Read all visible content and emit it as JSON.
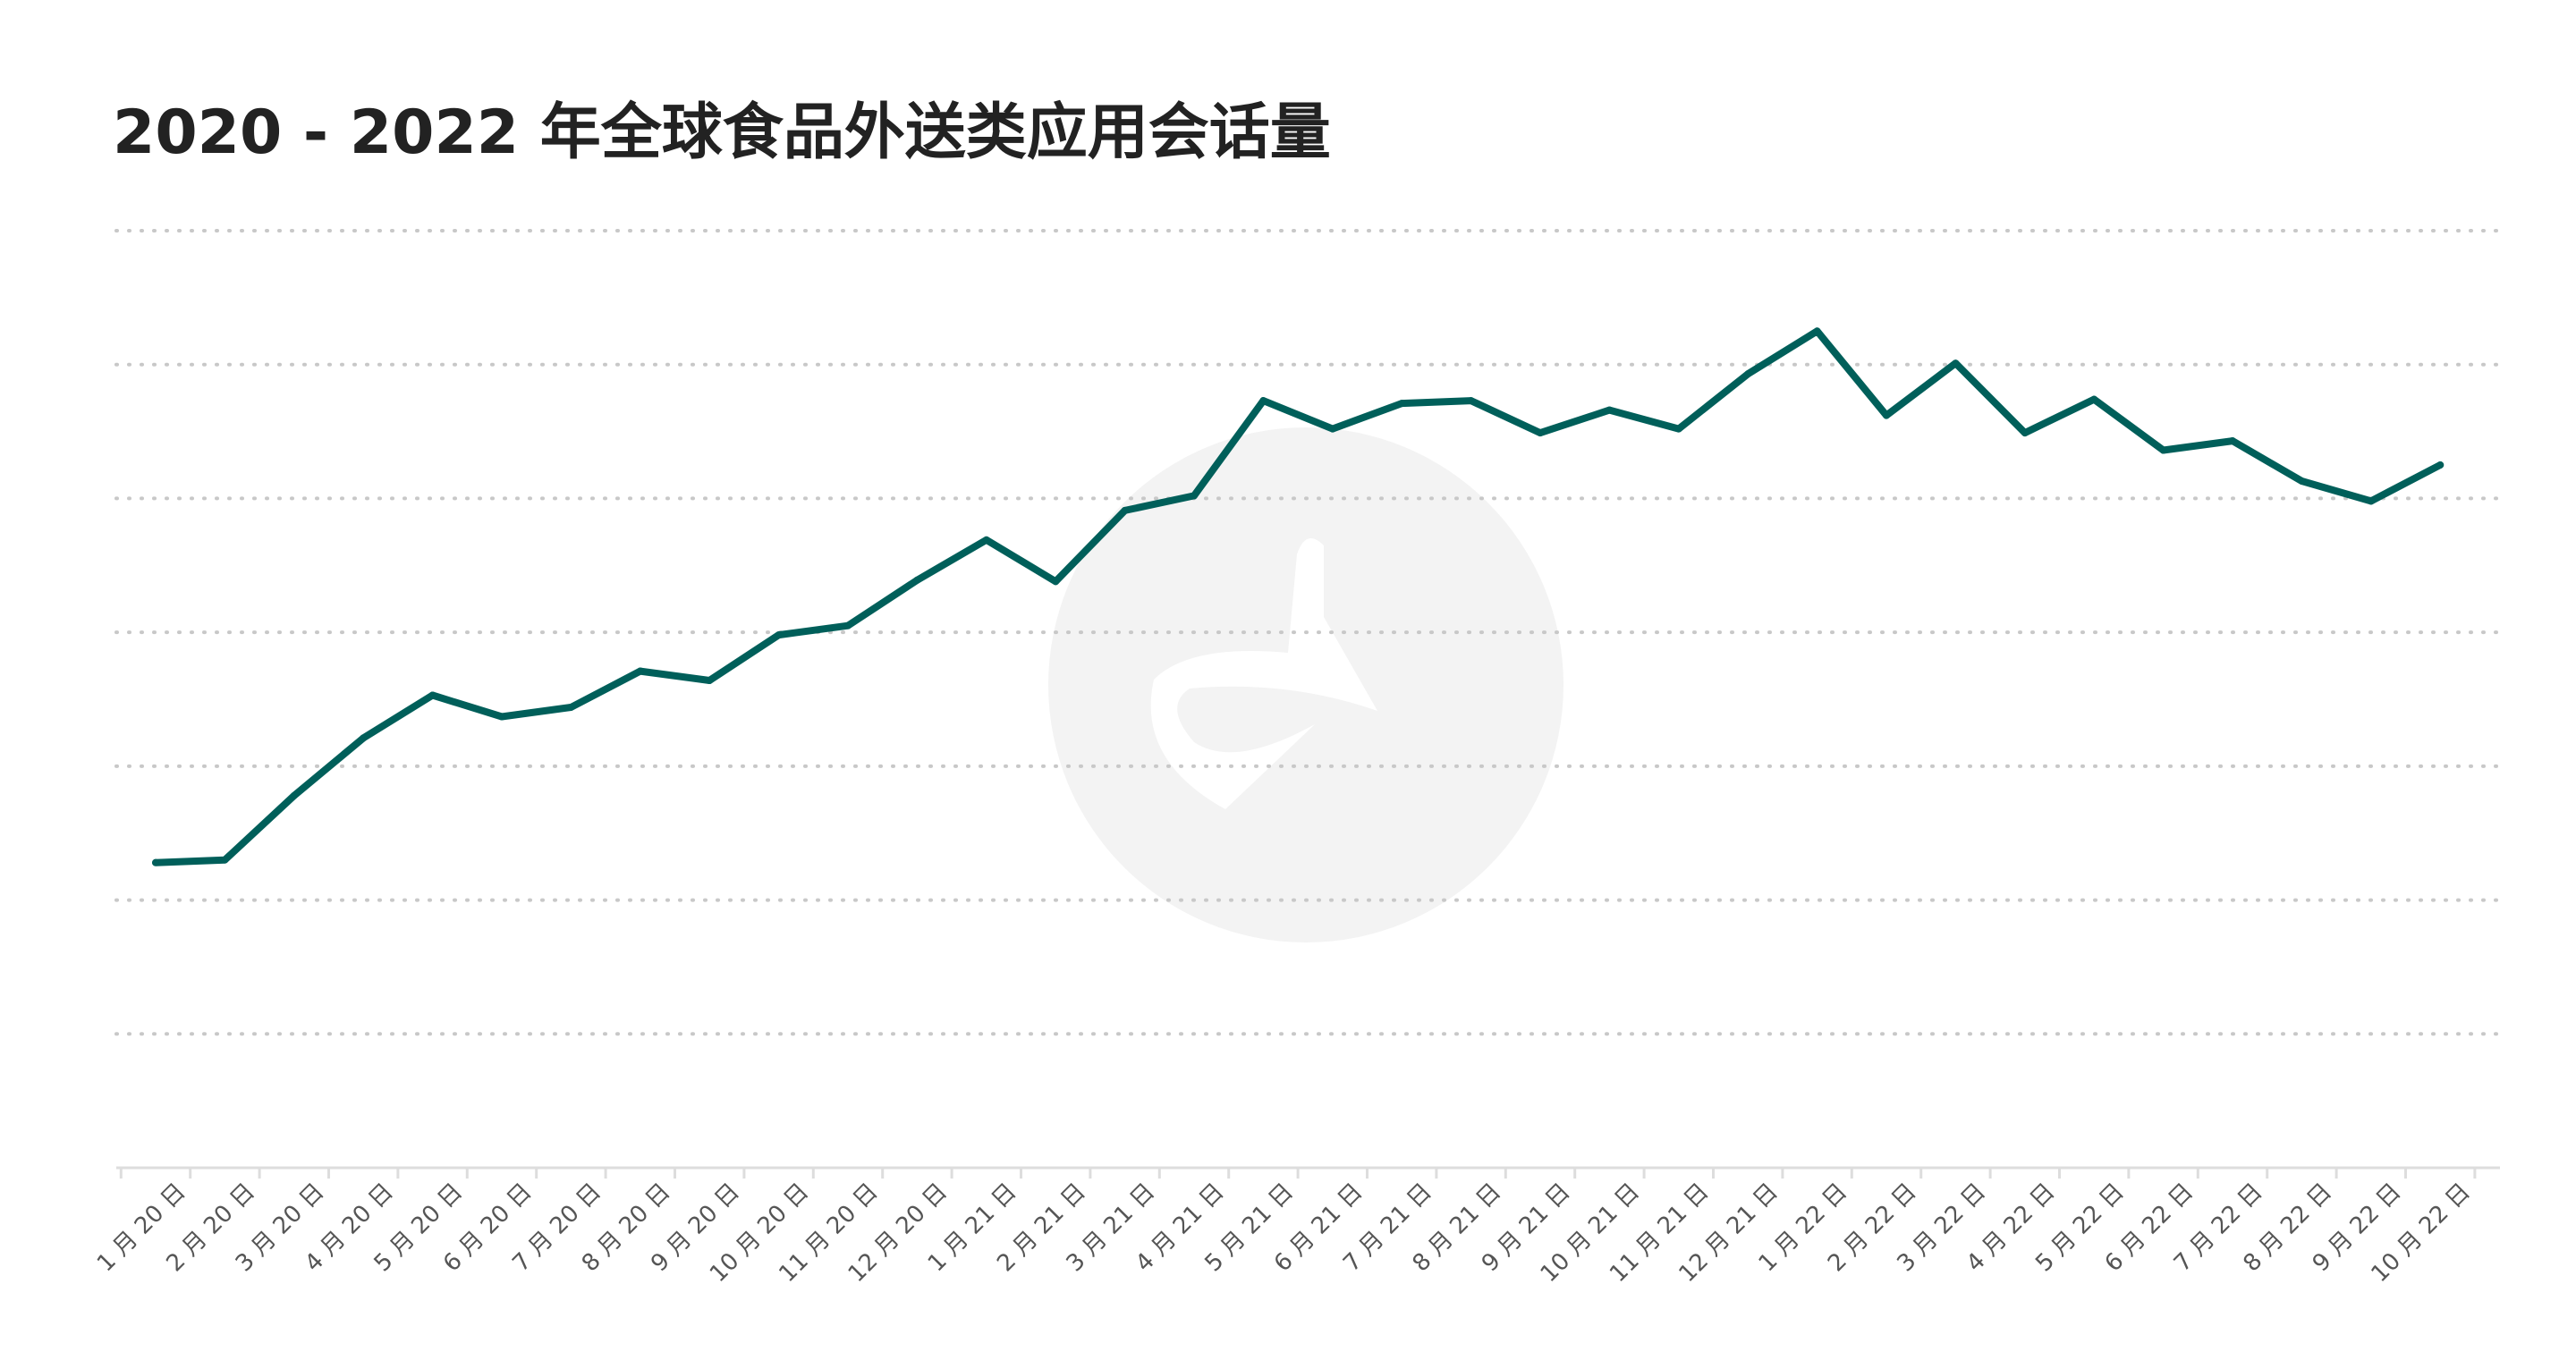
{
  "chart_data": {
    "type": "line",
    "title": "2020 - 2022 年全球食品外送类应用会话量",
    "xlabel": "",
    "ylabel": "",
    "y_tick_labels": "none",
    "ylim": [
      0,
      7
    ],
    "grid": "horizontal dotted",
    "legend": "none",
    "categories": [
      "1 月 20 日",
      "2 月 20 日",
      "3 月 20 日",
      "4 月 20 日",
      "5 月 20 日",
      "6 月 20 日",
      "7 月 20 日",
      "8 月 20 日",
      "9 月 20 日",
      "10 月 20 日",
      "11 月 20 日",
      "12 月 20 日",
      "1 月 21 日",
      "2 月 21 日",
      "3 月 21 日",
      "4 月 21 日",
      "5 月 21 日",
      "6 月 21 日",
      "7 月 21 日",
      "8 月 21 日",
      "9 月 21 日",
      "10 月 21 日",
      "11 月 21 日",
      "12 月 21 日",
      "1 月 22 日",
      "2 月 22 日",
      "3 月 22 日",
      "4 月 22 日",
      "5 月 22 日",
      "6 月 22 日",
      "7 月 22 日",
      "8 月 22 日",
      "9 月 22 日",
      "10 月 22 日"
    ],
    "series": [
      {
        "values": [
          2.28,
          2.3,
          2.78,
          3.21,
          3.53,
          3.37,
          3.44,
          3.71,
          3.64,
          3.98,
          4.05,
          4.39,
          4.69,
          4.38,
          4.91,
          5.02,
          5.73,
          5.52,
          5.71,
          5.73,
          5.49,
          5.66,
          5.52,
          5.93,
          6.25,
          5.62,
          6.01,
          5.49,
          5.74,
          5.36,
          5.43,
          5.13,
          4.98,
          5.25
        ]
      }
    ],
    "colors": {
      "line": "#005f5a",
      "grid": "#c8c8c8",
      "axis": "#dddddd",
      "watermark": "#f3f3f3",
      "text": "#555555",
      "title": "#222222"
    }
  }
}
